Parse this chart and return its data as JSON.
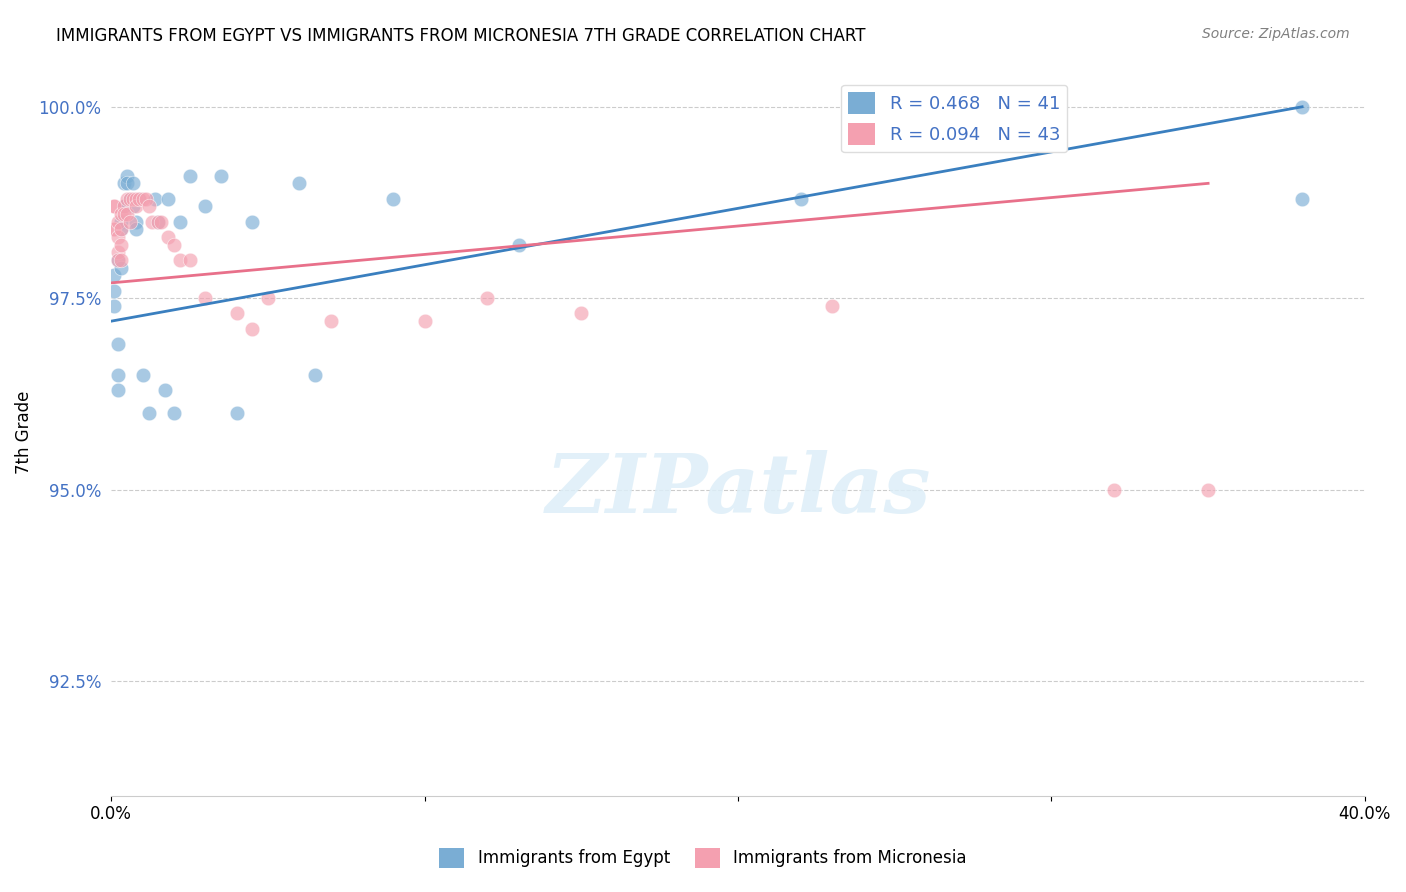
{
  "title": "IMMIGRANTS FROM EGYPT VS IMMIGRANTS FROM MICRONESIA 7TH GRADE CORRELATION CHART",
  "source": "Source: ZipAtlas.com",
  "ylabel": "7th Grade",
  "xlim": [
    0.0,
    0.4
  ],
  "ylim": [
    0.91,
    1.005
  ],
  "yticks": [
    0.925,
    0.95,
    0.975,
    1.0
  ],
  "ytick_labels": [
    "92.5%",
    "95.0%",
    "97.5%",
    "100.0%"
  ],
  "xticks": [
    0.0,
    0.1,
    0.2,
    0.3,
    0.4
  ],
  "xtick_labels": [
    "0.0%",
    "",
    "",
    "",
    "40.0%"
  ],
  "legend_r_egypt": "R = 0.468",
  "legend_n_egypt": "N = 41",
  "legend_r_micronesia": "R = 0.094",
  "legend_n_micronesia": "N = 43",
  "egypt_color": "#7aadd4",
  "micronesia_color": "#f4a0b0",
  "egypt_line_color": "#3a7fbf",
  "micronesia_line_color": "#e8708a",
  "watermark_text": "ZIPatlas",
  "egypt_x": [
    0.001,
    0.001,
    0.001,
    0.002,
    0.002,
    0.002,
    0.002,
    0.003,
    0.003,
    0.003,
    0.004,
    0.004,
    0.004,
    0.005,
    0.005,
    0.006,
    0.007,
    0.007,
    0.008,
    0.008,
    0.009,
    0.01,
    0.012,
    0.014,
    0.015,
    0.017,
    0.018,
    0.02,
    0.022,
    0.025,
    0.03,
    0.035,
    0.04,
    0.045,
    0.06,
    0.065,
    0.09,
    0.13,
    0.22,
    0.38,
    0.38
  ],
  "egypt_y": [
    0.974,
    0.976,
    0.978,
    0.98,
    0.969,
    0.965,
    0.963,
    0.985,
    0.984,
    0.979,
    0.987,
    0.987,
    0.99,
    0.991,
    0.99,
    0.988,
    0.987,
    0.99,
    0.985,
    0.984,
    0.988,
    0.965,
    0.96,
    0.988,
    0.985,
    0.963,
    0.988,
    0.96,
    0.985,
    0.991,
    0.987,
    0.991,
    0.96,
    0.985,
    0.99,
    0.965,
    0.988,
    0.982,
    0.988,
    0.988,
    1.0
  ],
  "micronesia_x": [
    0.001,
    0.001,
    0.001,
    0.001,
    0.002,
    0.002,
    0.002,
    0.002,
    0.003,
    0.003,
    0.003,
    0.003,
    0.004,
    0.004,
    0.005,
    0.005,
    0.006,
    0.006,
    0.007,
    0.008,
    0.008,
    0.009,
    0.01,
    0.011,
    0.012,
    0.013,
    0.015,
    0.016,
    0.018,
    0.02,
    0.022,
    0.025,
    0.03,
    0.04,
    0.045,
    0.05,
    0.07,
    0.1,
    0.12,
    0.15,
    0.23,
    0.32,
    0.35
  ],
  "micronesia_y": [
    0.984,
    0.987,
    0.987,
    0.984,
    0.985,
    0.983,
    0.981,
    0.98,
    0.986,
    0.984,
    0.982,
    0.98,
    0.987,
    0.986,
    0.988,
    0.986,
    0.988,
    0.985,
    0.988,
    0.988,
    0.987,
    0.988,
    0.988,
    0.988,
    0.987,
    0.985,
    0.985,
    0.985,
    0.983,
    0.982,
    0.98,
    0.98,
    0.975,
    0.973,
    0.971,
    0.975,
    0.972,
    0.972,
    0.975,
    0.973,
    0.974,
    0.95,
    0.95
  ],
  "egypt_line_x": [
    0.0,
    0.38
  ],
  "egypt_line_y": [
    0.972,
    1.0
  ],
  "micronesia_line_x": [
    0.0,
    0.35
  ],
  "micronesia_line_y": [
    0.977,
    0.99
  ]
}
